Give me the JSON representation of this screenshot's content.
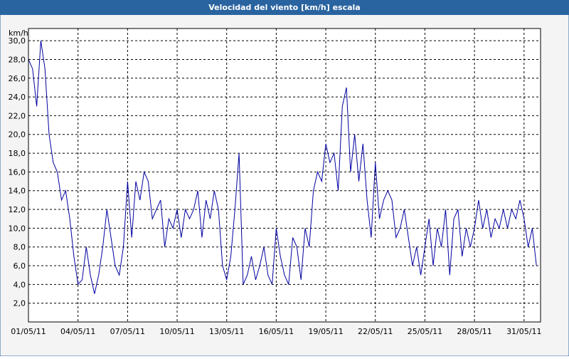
{
  "chart_data": {
    "type": "line",
    "title": "Velocidad del viento [km/h] escala",
    "y_label": "km/h",
    "categories": [
      "01/05/11",
      null,
      null,
      null,
      null,
      null,
      null,
      null,
      null,
      null,
      null,
      null,
      "04/05/11",
      null,
      null,
      null,
      null,
      null,
      null,
      null,
      null,
      null,
      null,
      null,
      "07/05/11",
      null,
      null,
      null,
      null,
      null,
      null,
      null,
      null,
      null,
      null,
      null,
      "10/05/11",
      null,
      null,
      null,
      null,
      null,
      null,
      null,
      null,
      null,
      null,
      null,
      "13/05/11",
      null,
      null,
      null,
      null,
      null,
      null,
      null,
      null,
      null,
      null,
      null,
      "16/05/11",
      null,
      null,
      null,
      null,
      null,
      null,
      null,
      null,
      null,
      null,
      null,
      "19/05/11",
      null,
      null,
      null,
      null,
      null,
      null,
      null,
      null,
      null,
      null,
      null,
      "22/05/11",
      null,
      null,
      null,
      null,
      null,
      null,
      null,
      null,
      null,
      null,
      null,
      "25/05/11",
      null,
      null,
      null,
      null,
      null,
      null,
      null,
      null,
      null,
      null,
      null,
      "28/05/11",
      null,
      null,
      null,
      null,
      null,
      null,
      null,
      null,
      null,
      null,
      null,
      "31/05/11",
      null,
      null,
      null
    ],
    "series": [
      {
        "color": "#0000a0",
        "values": [
          28,
          27,
          23,
          30,
          27,
          20,
          17,
          16,
          13,
          14,
          11,
          7,
          4,
          4.5,
          8,
          5,
          3,
          5,
          8,
          12,
          9,
          6,
          5,
          8,
          15,
          9,
          15,
          13,
          16,
          15,
          11,
          12,
          13,
          8,
          11,
          10,
          12,
          9,
          12,
          11,
          12,
          14,
          9,
          13,
          11,
          14,
          12,
          6,
          4.5,
          7,
          12,
          18,
          4,
          5,
          7,
          4.5,
          6,
          8,
          5,
          4,
          10,
          7,
          5,
          4,
          9,
          8,
          4.5,
          10,
          8,
          14,
          16,
          15,
          19,
          17,
          18,
          14,
          23,
          25,
          16,
          20,
          15,
          19,
          13,
          9,
          17,
          11,
          13,
          14,
          13,
          9,
          10,
          12,
          9,
          6,
          8,
          5,
          8,
          11,
          6,
          10,
          8,
          12,
          5,
          11,
          12,
          7,
          10,
          8,
          10,
          13,
          10,
          12,
          9,
          11,
          10,
          12,
          10,
          12,
          11,
          13,
          11,
          8,
          10,
          6
        ]
      }
    ],
    "ylim": [
      0,
      31.3
    ],
    "yticks": [
      {
        "value": 2,
        "label": "2,0"
      },
      {
        "value": 4,
        "label": "4,0"
      },
      {
        "value": 6,
        "label": "6,0"
      },
      {
        "value": 8,
        "label": "8,0"
      },
      {
        "value": 10,
        "label": "10,0"
      },
      {
        "value": 12,
        "label": "12,0"
      },
      {
        "value": 14,
        "label": "14,0"
      },
      {
        "value": 16,
        "label": "16,0"
      },
      {
        "value": 18,
        "label": "18,0"
      },
      {
        "value": 20,
        "label": "20,0"
      },
      {
        "value": 22,
        "label": "22,0"
      },
      {
        "value": 24,
        "label": "24,0"
      },
      {
        "value": 26,
        "label": "26,0"
      },
      {
        "value": 28,
        "label": "28,0"
      },
      {
        "value": 30,
        "label": "30,0"
      }
    ],
    "grid": true
  }
}
